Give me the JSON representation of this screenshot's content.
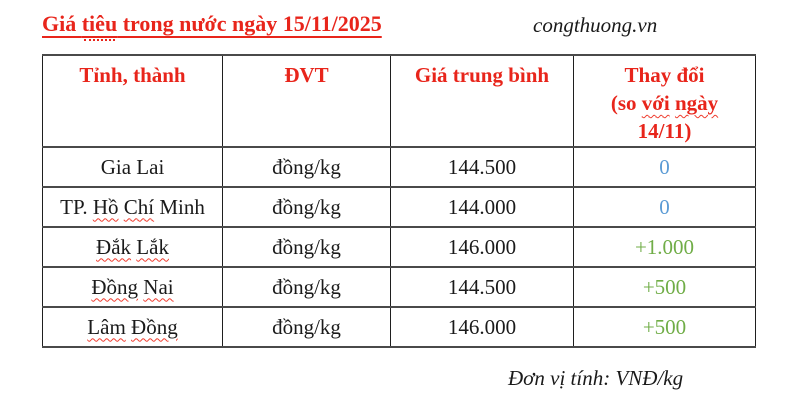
{
  "header": {
    "title_part1": "Giá ",
    "title_word_dotted": "tiêu",
    "title_part2": " trong nước ngày 15/11/2025",
    "source": "congthuong.vn"
  },
  "colors": {
    "title_red": "#e8251b",
    "header_red": "#e8251b",
    "blue": "#5b9bd5",
    "green": "#70ad47",
    "border_dark": "#1f1f1f",
    "border_gray": "#4a4a4a"
  },
  "table": {
    "columns": [
      {
        "name": "province",
        "lines": [
          [
            {
              "t": "Tỉnh, thành",
              "sq": false
            }
          ]
        ]
      },
      {
        "name": "unit",
        "lines": [
          [
            {
              "t": "ĐVT",
              "sq": false
            }
          ]
        ]
      },
      {
        "name": "avg-price",
        "lines": [
          [
            {
              "t": "Giá trung bình",
              "sq": false
            }
          ]
        ]
      },
      {
        "name": "change",
        "lines": [
          [
            {
              "t": "Thay đổi",
              "sq": false
            }
          ],
          [
            {
              "t": "(so ",
              "sq": false
            },
            {
              "t": "với",
              "sq": true
            },
            {
              "t": " ",
              "sq": false
            },
            {
              "t": "ngày",
              "sq": true
            }
          ],
          [
            {
              "t": "14/11)",
              "sq": false
            }
          ]
        ]
      }
    ],
    "rows": [
      {
        "province": [
          {
            "t": "Gia Lai",
            "sq": false
          }
        ],
        "unit": "đồng/kg",
        "price": "144.500",
        "change": "0",
        "change_color": "blue"
      },
      {
        "province": [
          {
            "t": "TP. ",
            "sq": false
          },
          {
            "t": "Hồ",
            "sq": true
          },
          {
            "t": " ",
            "sq": false
          },
          {
            "t": "Chí",
            "sq": true
          },
          {
            "t": " Minh",
            "sq": false
          }
        ],
        "unit": "đồng/kg",
        "price": "144.000",
        "change": "0",
        "change_color": "blue"
      },
      {
        "province": [
          {
            "t": "Đắk",
            "sq": true
          },
          {
            "t": " ",
            "sq": false
          },
          {
            "t": "Lắk",
            "sq": true
          }
        ],
        "unit": "đồng/kg",
        "price": "146.000",
        "change": "+1.000",
        "change_color": "green"
      },
      {
        "province": [
          {
            "t": "Đồng",
            "sq": true
          },
          {
            "t": " ",
            "sq": false
          },
          {
            "t": "Nai",
            "sq": true
          }
        ],
        "unit": "đồng/kg",
        "price": "144.500",
        "change": "+500",
        "change_color": "green"
      },
      {
        "province": [
          {
            "t": "Lâm",
            "sq": true
          },
          {
            "t": " ",
            "sq": false
          },
          {
            "t": "Đồng",
            "sq": true
          }
        ],
        "unit": "đồng/kg",
        "price": "146.000",
        "change": "+500",
        "change_color": "green"
      }
    ]
  },
  "footer": {
    "unit_note": "Đơn vị tính: VNĐ/kg"
  }
}
